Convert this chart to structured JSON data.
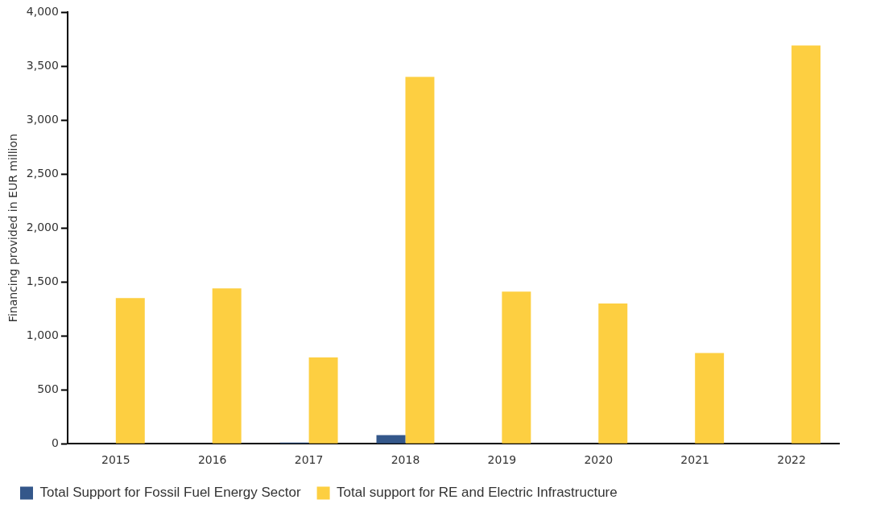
{
  "chart_data": {
    "type": "bar",
    "ylabel": "Financing provided in EUR million",
    "categories": [
      "2015",
      "2016",
      "2017",
      "2018",
      "2019",
      "2020",
      "2021",
      "2022"
    ],
    "series": [
      {
        "name": "Total Support for Fossil Fuel Energy Sector",
        "color": "#34578a",
        "values": [
          0,
          0,
          10,
          80,
          0,
          0,
          0,
          0
        ]
      },
      {
        "name": "Total support for RE and Electric Infrastructure",
        "color": "#fdcf41",
        "values": [
          1350,
          1440,
          800,
          3400,
          1410,
          1300,
          840,
          3690
        ]
      }
    ],
    "ylim": [
      0,
      4000
    ],
    "yticks": [
      {
        "value": 0,
        "label": "0"
      },
      {
        "value": 500,
        "label": "500"
      },
      {
        "value": 1000,
        "label": "1,000"
      },
      {
        "value": 1500,
        "label": "1,500"
      },
      {
        "value": 2000,
        "label": "2,000"
      },
      {
        "value": 2500,
        "label": "2,500"
      },
      {
        "value": 3000,
        "label": "3,000"
      },
      {
        "value": 3500,
        "label": "3,500"
      },
      {
        "value": 4000,
        "label": "4,000"
      }
    ],
    "grid": false,
    "legend": "bottom"
  }
}
